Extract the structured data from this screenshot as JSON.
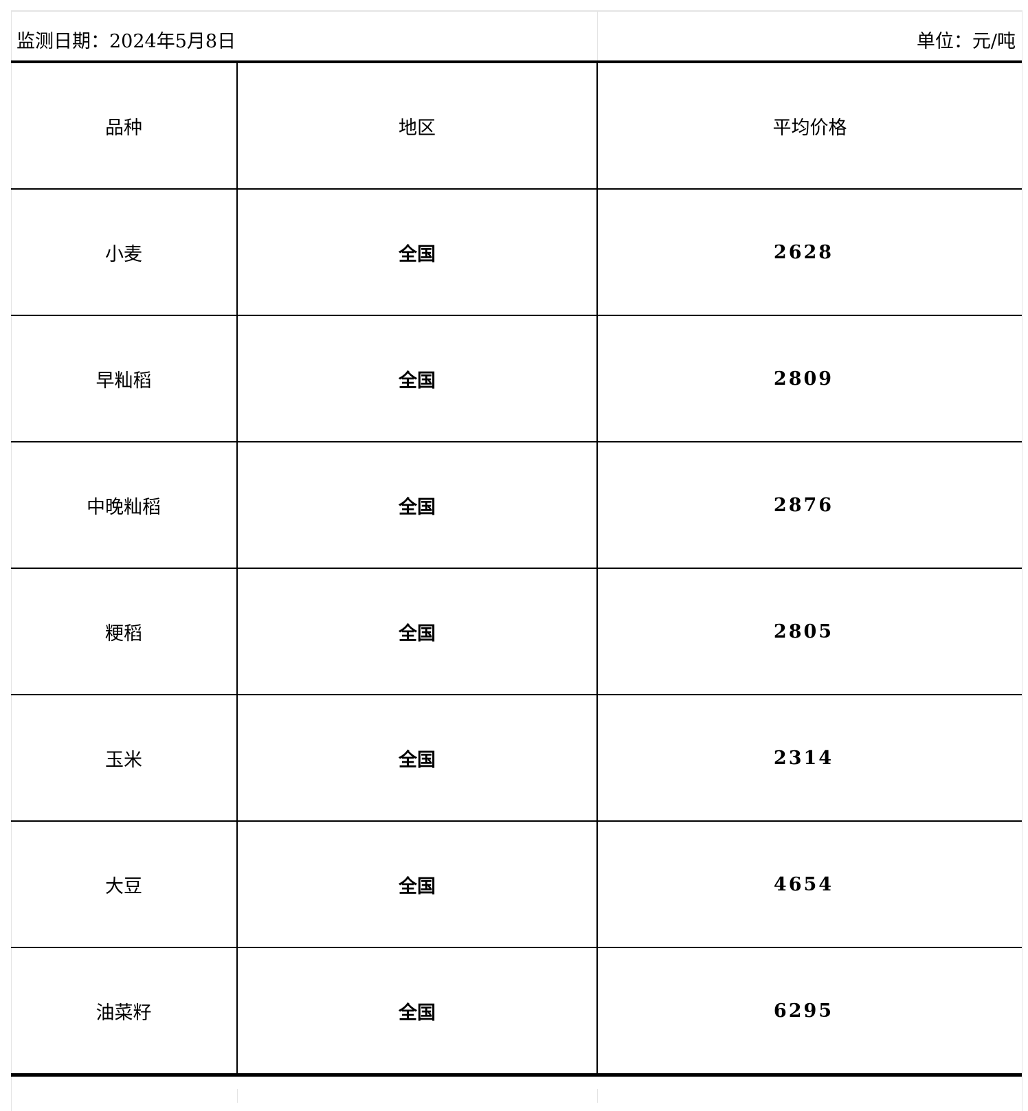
{
  "caption": {
    "date": "监测日期：2024年5月8日",
    "unit": "单位：元/吨"
  },
  "table": {
    "headers": [
      "品种",
      "地区",
      "平均价格"
    ],
    "rows": [
      {
        "variety": "小麦",
        "region": "全国",
        "price": "2628"
      },
      {
        "variety": "早籼稻",
        "region": "全国",
        "price": "2809"
      },
      {
        "variety": "中晚籼稻",
        "region": "全国",
        "price": "2876"
      },
      {
        "variety": "粳稻",
        "region": "全国",
        "price": "2805"
      },
      {
        "variety": "玉米",
        "region": "全国",
        "price": "2314"
      },
      {
        "variety": "大豆",
        "region": "全国",
        "price": "4654"
      },
      {
        "variety": "油菜籽",
        "region": "全国",
        "price": "6295"
      }
    ]
  }
}
